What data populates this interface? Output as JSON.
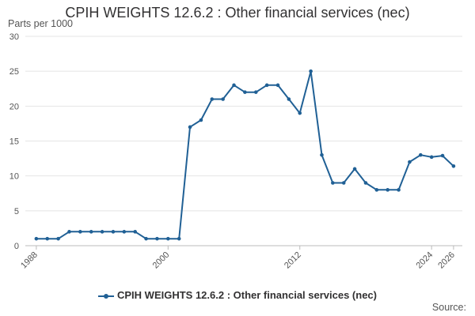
{
  "chart_data": {
    "type": "line",
    "title": "CPIH WEIGHTS 12.6.2 : Other financial services (nec)",
    "ylabel": "Parts per 1000",
    "ylim": [
      0,
      30
    ],
    "yticks": [
      0,
      5,
      10,
      15,
      20,
      25,
      30
    ],
    "xlim": [
      1987,
      2026.8
    ],
    "xticks": [
      1988,
      2000,
      2012,
      2024,
      2026
    ],
    "grid": true,
    "legend": "bottom-center",
    "series": [
      {
        "name": "CPIH WEIGHTS 12.6.2 : Other financial services (nec)",
        "color": "#206095",
        "x": [
          1988,
          1989,
          1990,
          1991,
          1992,
          1993,
          1994,
          1995,
          1996,
          1997,
          1998,
          1999,
          2000,
          2001,
          2002,
          2003,
          2004,
          2005,
          2006,
          2007,
          2008,
          2009,
          2010,
          2011,
          2012,
          2013,
          2014,
          2015,
          2016,
          2017,
          2018,
          2019,
          2020,
          2021,
          2022,
          2023,
          2024,
          2025,
          2026
        ],
        "y": [
          1,
          1,
          1,
          2,
          2,
          2,
          2,
          2,
          2,
          2,
          1,
          1,
          1,
          1,
          17,
          18,
          21,
          21,
          23,
          22,
          22,
          23,
          23,
          21,
          19,
          25,
          13,
          9,
          9,
          11,
          9,
          8,
          8,
          8,
          12,
          13,
          12.7,
          12.9,
          11.4
        ]
      }
    ],
    "source": "Source:"
  }
}
